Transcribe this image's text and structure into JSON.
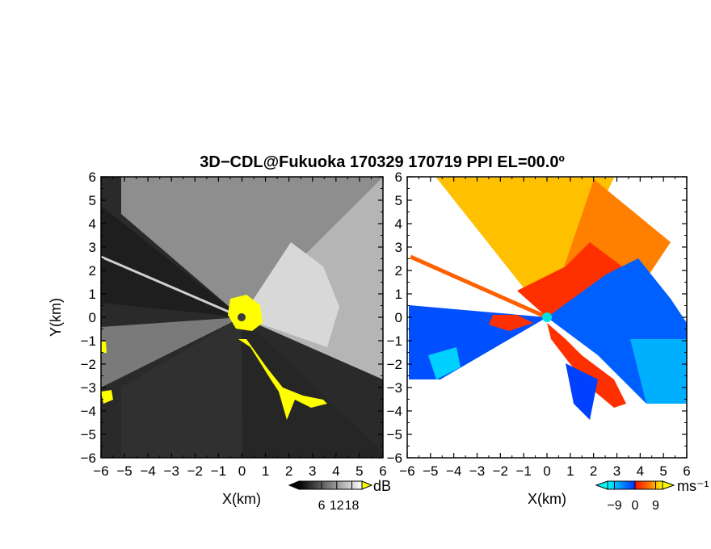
{
  "figure": {
    "title": "3D−CDL@Fukuoka 170329 170719 PPI EL=00.0º"
  },
  "chart_data": [
    {
      "type": "heatmap",
      "name": "backscatter-intensity-ppi",
      "xlabel": "X(km)",
      "ylabel": "Y(km)",
      "xlim": [
        -6,
        6
      ],
      "ylim": [
        -6,
        6
      ],
      "x_ticks": [
        -6,
        -5,
        -4,
        -3,
        -2,
        -1,
        0,
        1,
        2,
        3,
        4,
        5,
        6
      ],
      "y_ticks": [
        -6,
        -5,
        -4,
        -3,
        -2,
        -1,
        0,
        1,
        2,
        3,
        4,
        5,
        6
      ],
      "x_tick_labels": [
        "−6",
        "−5",
        "−4",
        "−3",
        "−2",
        "−1",
        "0",
        "1",
        "2",
        "3",
        "4",
        "5",
        "6"
      ],
      "y_tick_labels": [
        "−6",
        "−5",
        "−4",
        "−3",
        "−2",
        "−1",
        "0",
        "1",
        "2",
        "3",
        "4",
        "5",
        "6"
      ],
      "colorbar": {
        "unit": "dB",
        "ticks": [
          6,
          12,
          18
        ],
        "tick_labels": [
          "6",
          "12",
          "18"
        ],
        "colors": [
          "#000000",
          "#ffffff"
        ],
        "overflow_color": "#ffff00"
      }
    },
    {
      "type": "heatmap",
      "name": "doppler-velocity-ppi",
      "xlabel": "X(km)",
      "ylabel": "",
      "xlim": [
        -6,
        6
      ],
      "ylim": [
        -6,
        6
      ],
      "x_ticks": [
        -6,
        -5,
        -4,
        -3,
        -2,
        -1,
        0,
        1,
        2,
        3,
        4,
        5,
        6
      ],
      "y_ticks": [
        -6,
        -5,
        -4,
        -3,
        -2,
        -1,
        0,
        1,
        2,
        3,
        4,
        5,
        6
      ],
      "x_tick_labels": [
        "−6",
        "−5",
        "−4",
        "−3",
        "−2",
        "−1",
        "0",
        "1",
        "2",
        "3",
        "4",
        "5",
        "6"
      ],
      "y_tick_labels": [
        "−6",
        "−5",
        "−4",
        "−3",
        "−2",
        "−1",
        "0",
        "1",
        "2",
        "3",
        "4",
        "5",
        "6"
      ],
      "colorbar": {
        "unit": "ms⁻¹",
        "ticks": [
          -9,
          0,
          9
        ],
        "tick_labels": [
          "−9",
          "0",
          "9"
        ],
        "colors": [
          "#00ffff",
          "#0050ff",
          "#ff2000",
          "#ffff00"
        ]
      }
    }
  ]
}
